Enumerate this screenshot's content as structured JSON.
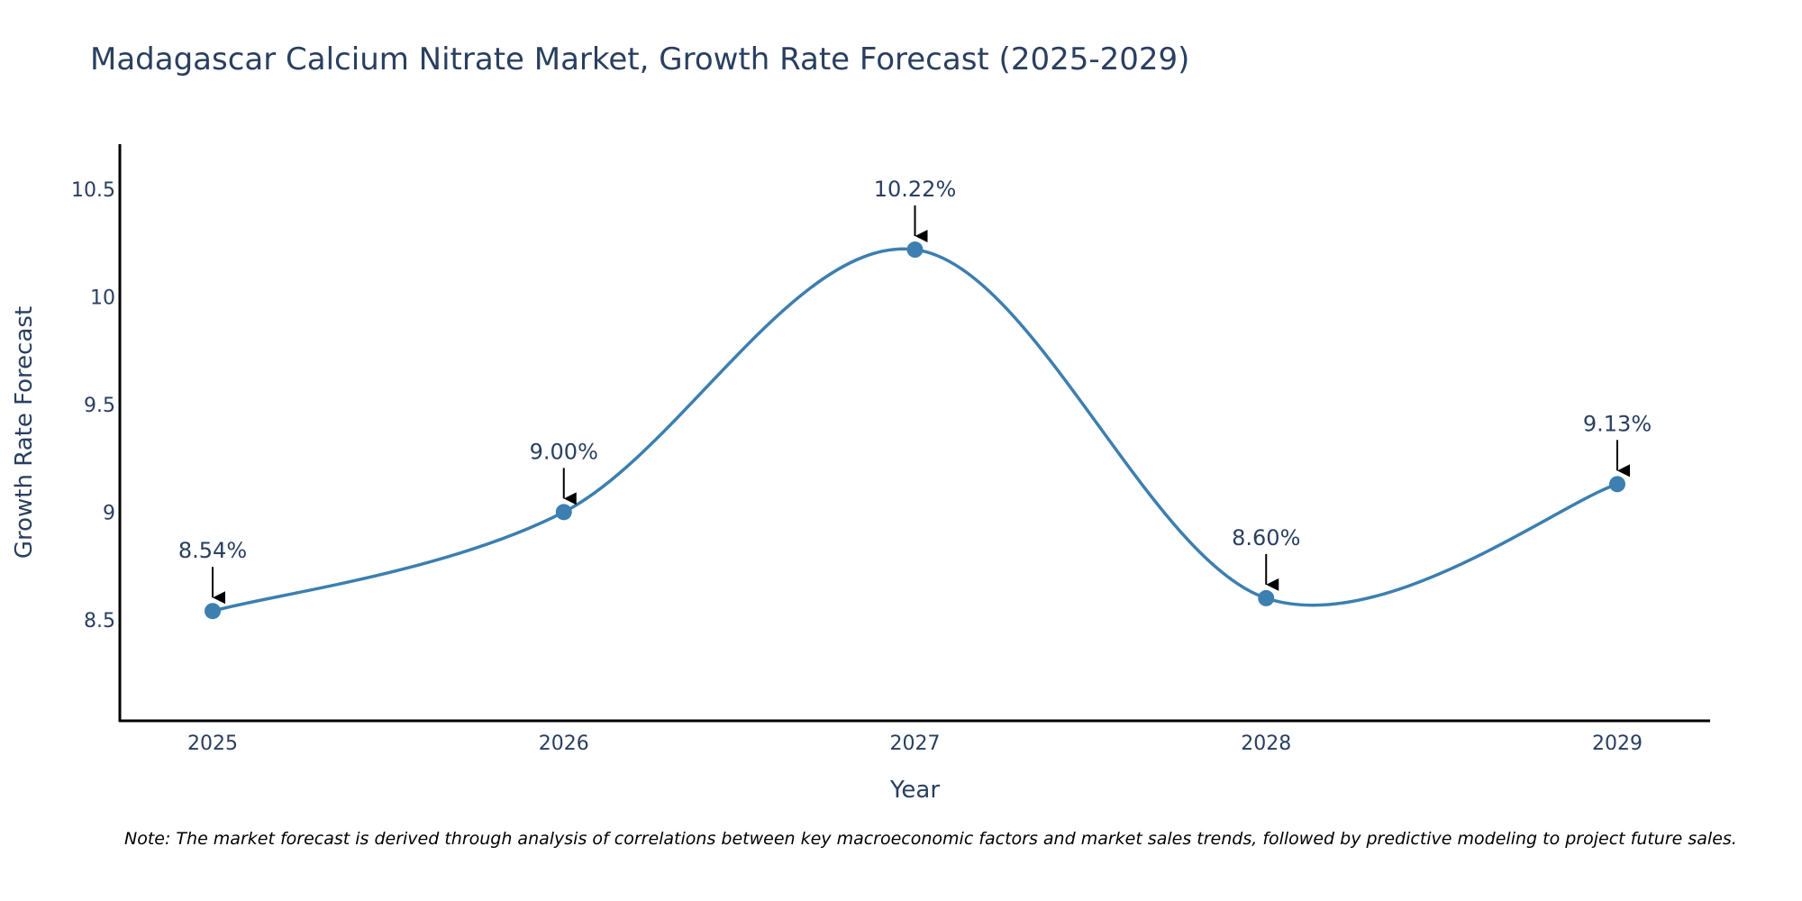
{
  "chart_data": {
    "type": "line",
    "title": "Madagascar Calcium Nitrate Market, Growth Rate Forecast (2025-2029)",
    "xlabel": "Year",
    "ylabel": "Growth Rate Forecast",
    "categories": [
      "2025",
      "2026",
      "2027",
      "2028",
      "2029"
    ],
    "series": [
      {
        "name": "Growth Rate Forecast",
        "values": [
          8.54,
          9.0,
          10.22,
          8.6,
          9.13
        ],
        "labels": [
          "8.54%",
          "9.00%",
          "10.22%",
          "8.60%",
          "9.13%"
        ],
        "color": "#3c7fb0"
      }
    ],
    "ylim": [
      8.03,
      10.71
    ],
    "yticks": [
      8.5,
      9,
      9.5,
      10,
      10.5
    ],
    "ytick_labels": [
      "8.5",
      "9",
      "9.5",
      "10",
      "10.5"
    ],
    "line_shape": "spline",
    "grid": false,
    "note": "Note: The market forecast is derived through analysis of correlations between key macroeconomic factors and market sales trends, followed by predictive modeling to project future sales."
  },
  "colors": {
    "line": "#3c7fb0",
    "marker": "#3c7fb0",
    "text": "#2a3f5f",
    "axis": "#000000",
    "arrow": "#000000"
  }
}
